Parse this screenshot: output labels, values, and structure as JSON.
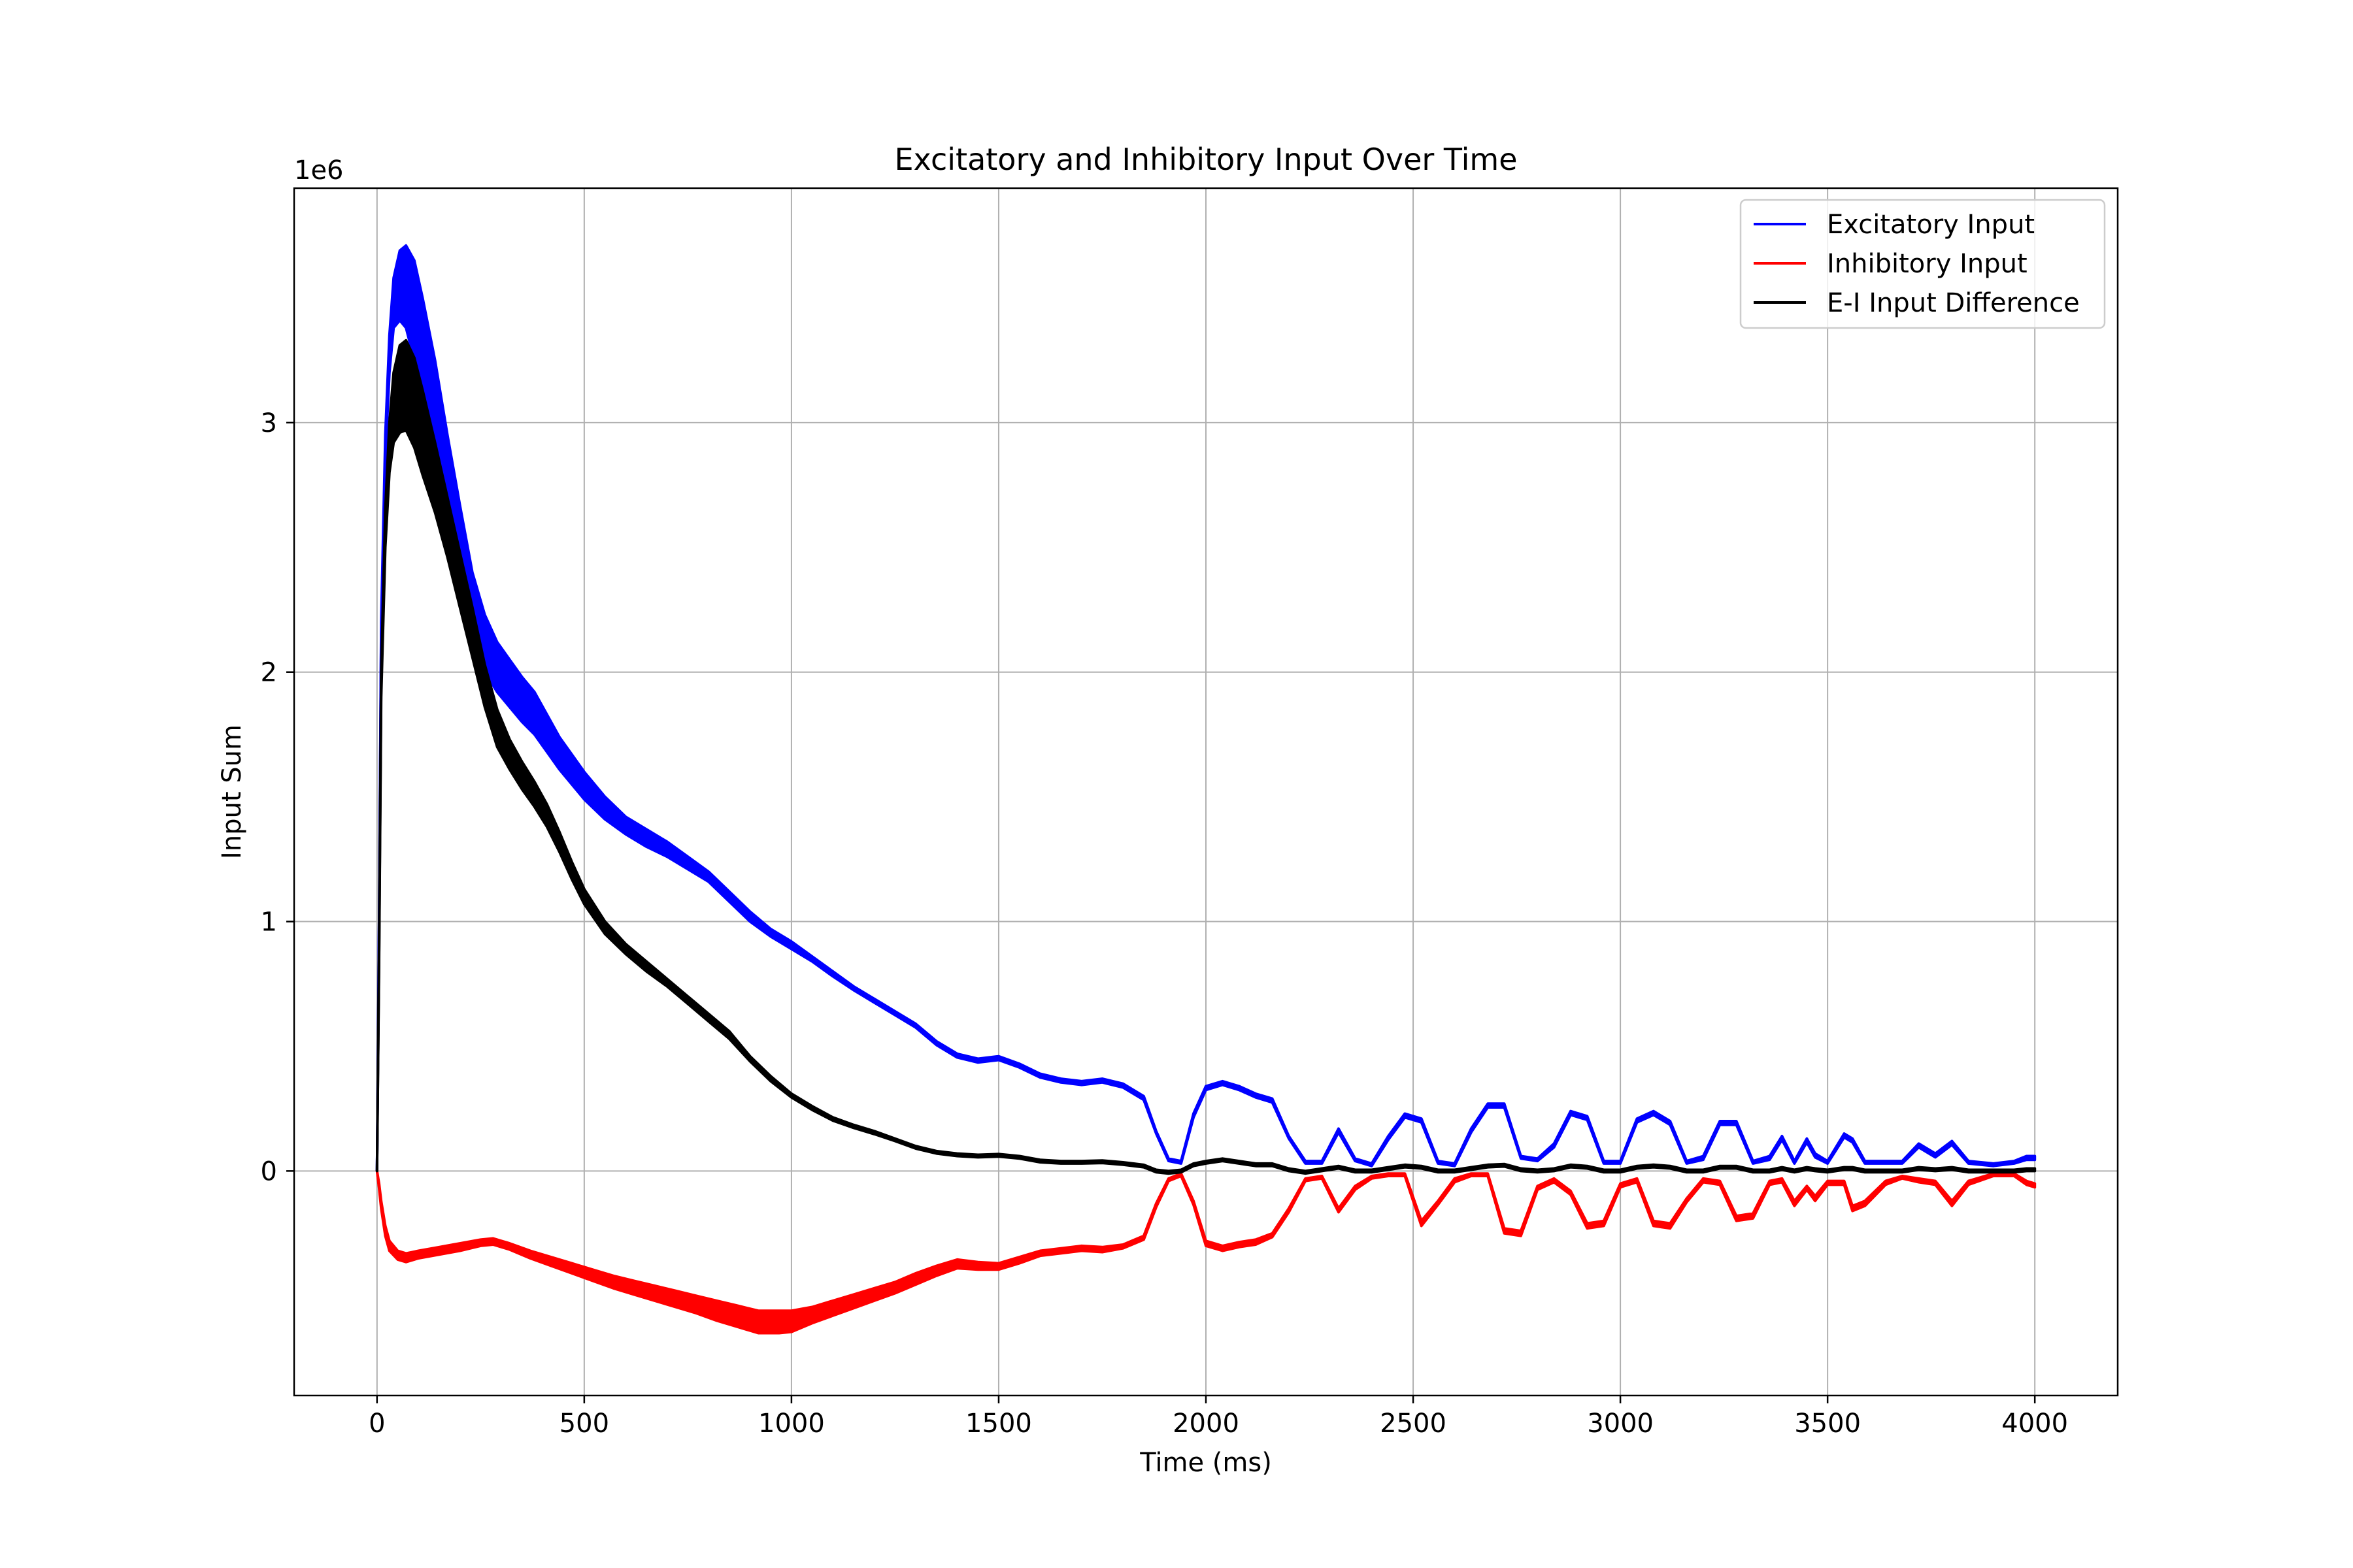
{
  "chart_data": {
    "type": "line",
    "title": "Excitatory and Inhibitory Input Over Time",
    "xlabel": "Time (ms)",
    "ylabel": "Input Sum",
    "y_offset_label": "1e6",
    "xlim": [
      -200,
      4200
    ],
    "ylim": [
      -900000,
      3940000
    ],
    "x_ticks": [
      0,
      500,
      1000,
      1500,
      2000,
      2500,
      3000,
      3500,
      4000
    ],
    "x_tick_labels": [
      "0",
      "500",
      "1000",
      "1500",
      "2000",
      "2500",
      "3000",
      "3500",
      "4000"
    ],
    "y_ticks": [
      0,
      1000000,
      2000000,
      3000000
    ],
    "y_tick_labels": [
      "0",
      "1",
      "2",
      "3"
    ],
    "grid": true,
    "legend_position": "top-right",
    "series": [
      {
        "name": "Excitatory Input",
        "color": "#0000ff",
        "x": [
          0,
          5,
          10,
          20,
          30,
          40,
          55,
          70,
          90,
          110,
          140,
          170,
          200,
          230,
          260,
          290,
          320,
          350,
          380,
          410,
          440,
          470,
          500,
          550,
          600,
          650,
          700,
          750,
          800,
          850,
          900,
          950,
          1000,
          1050,
          1100,
          1150,
          1200,
          1250,
          1300,
          1350,
          1400,
          1450,
          1500,
          1550,
          1600,
          1650,
          1700,
          1750,
          1800,
          1850,
          1880,
          1910,
          1940,
          1970,
          2000,
          2040,
          2080,
          2120,
          2160,
          2200,
          2240,
          2280,
          2320,
          2360,
          2400,
          2440,
          2480,
          2520,
          2560,
          2600,
          2640,
          2680,
          2720,
          2760,
          2800,
          2840,
          2880,
          2920,
          2960,
          3000,
          3040,
          3080,
          3120,
          3160,
          3200,
          3240,
          3280,
          3320,
          3360,
          3390,
          3420,
          3450,
          3470,
          3500,
          3540,
          3560,
          3590,
          3640,
          3680,
          3720,
          3760,
          3800,
          3840,
          3900,
          3950,
          3980,
          4000
        ],
        "values_upper": [
          0,
          1000000,
          2200000,
          2950000,
          3350000,
          3580000,
          3690000,
          3710000,
          3650000,
          3500000,
          3250000,
          2950000,
          2670000,
          2400000,
          2230000,
          2120000,
          2050000,
          1980000,
          1920000,
          1830000,
          1740000,
          1670000,
          1600000,
          1500000,
          1420000,
          1370000,
          1320000,
          1260000,
          1200000,
          1120000,
          1040000,
          970000,
          920000,
          860000,
          800000,
          740000,
          690000,
          640000,
          590000,
          520000,
          470000,
          450000,
          460000,
          430000,
          390000,
          370000,
          360000,
          370000,
          350000,
          300000,
          160000,
          50000,
          40000,
          230000,
          340000,
          360000,
          340000,
          310000,
          290000,
          140000,
          40000,
          40000,
          170000,
          50000,
          30000,
          140000,
          230000,
          210000,
          40000,
          30000,
          170000,
          270000,
          270000,
          60000,
          50000,
          110000,
          240000,
          220000,
          40000,
          40000,
          210000,
          240000,
          200000,
          40000,
          60000,
          200000,
          200000,
          40000,
          60000,
          140000,
          40000,
          130000,
          70000,
          40000,
          150000,
          130000,
          40000,
          40000,
          40000,
          110000,
          70000,
          120000,
          40000,
          30000,
          40000,
          60000,
          60000
        ],
        "values_lower": [
          0,
          1000000,
          2100000,
          2850000,
          3200000,
          3380000,
          3410000,
          3380000,
          3250000,
          3080000,
          2850000,
          2600000,
          2380000,
          2170000,
          2000000,
          1920000,
          1860000,
          1800000,
          1750000,
          1680000,
          1610000,
          1550000,
          1490000,
          1410000,
          1350000,
          1300000,
          1260000,
          1210000,
          1160000,
          1080000,
          1000000,
          940000,
          890000,
          840000,
          780000,
          725000,
          675000,
          625000,
          575000,
          505000,
          455000,
          435000,
          445000,
          415000,
          375000,
          355000,
          345000,
          355000,
          335000,
          285000,
          150000,
          40000,
          30000,
          215000,
          325000,
          345000,
          325000,
          295000,
          275000,
          130000,
          30000,
          30000,
          155000,
          40000,
          20000,
          125000,
          215000,
          195000,
          30000,
          20000,
          155000,
          255000,
          255000,
          50000,
          40000,
          95000,
          225000,
          205000,
          30000,
          30000,
          195000,
          225000,
          185000,
          30000,
          45000,
          185000,
          185000,
          30000,
          45000,
          125000,
          30000,
          115000,
          55000,
          30000,
          135000,
          115000,
          30000,
          30000,
          30000,
          95000,
          55000,
          105000,
          30000,
          20000,
          30000,
          45000,
          45000
        ]
      },
      {
        "name": "Inhibitory Input",
        "color": "#ff0000",
        "x": [
          0,
          5,
          10,
          20,
          30,
          50,
          70,
          100,
          150,
          200,
          250,
          280,
          320,
          370,
          420,
          470,
          520,
          570,
          620,
          670,
          720,
          770,
          820,
          870,
          920,
          970,
          1000,
          1050,
          1100,
          1150,
          1200,
          1250,
          1300,
          1350,
          1400,
          1450,
          1500,
          1550,
          1600,
          1650,
          1700,
          1750,
          1800,
          1850,
          1880,
          1910,
          1940,
          1970,
          2000,
          2040,
          2080,
          2120,
          2160,
          2200,
          2240,
          2280,
          2320,
          2360,
          2400,
          2440,
          2480,
          2520,
          2560,
          2600,
          2640,
          2680,
          2720,
          2760,
          2800,
          2840,
          2880,
          2920,
          2960,
          3000,
          3040,
          3080,
          3120,
          3160,
          3200,
          3240,
          3280,
          3320,
          3360,
          3390,
          3420,
          3450,
          3470,
          3500,
          3540,
          3560,
          3590,
          3640,
          3680,
          3720,
          3760,
          3800,
          3840,
          3900,
          3950,
          3980,
          4000
        ],
        "values_upper": [
          0,
          -50000,
          -120000,
          -220000,
          -280000,
          -320000,
          -330000,
          -320000,
          -305000,
          -290000,
          -275000,
          -270000,
          -290000,
          -320000,
          -345000,
          -370000,
          -395000,
          -420000,
          -440000,
          -460000,
          -480000,
          -500000,
          -520000,
          -540000,
          -560000,
          -560000,
          -560000,
          -545000,
          -520000,
          -495000,
          -470000,
          -445000,
          -410000,
          -380000,
          -355000,
          -365000,
          -370000,
          -345000,
          -320000,
          -310000,
          -300000,
          -305000,
          -295000,
          -260000,
          -130000,
          -30000,
          -10000,
          -120000,
          -280000,
          -300000,
          -285000,
          -275000,
          -250000,
          -150000,
          -30000,
          -20000,
          -150000,
          -60000,
          -20000,
          -10000,
          -10000,
          -200000,
          -120000,
          -30000,
          -10000,
          -10000,
          -230000,
          -240000,
          -60000,
          -30000,
          -80000,
          -210000,
          -200000,
          -50000,
          -30000,
          -200000,
          -210000,
          -110000,
          -30000,
          -40000,
          -180000,
          -170000,
          -40000,
          -30000,
          -120000,
          -60000,
          -100000,
          -40000,
          -40000,
          -140000,
          -120000,
          -40000,
          -20000,
          -30000,
          -40000,
          -120000,
          -40000,
          -10000,
          -10000,
          -40000,
          -50000
        ],
        "values_lower": [
          0,
          -70000,
          -150000,
          -260000,
          -320000,
          -355000,
          -365000,
          -350000,
          -335000,
          -320000,
          -300000,
          -295000,
          -315000,
          -350000,
          -380000,
          -410000,
          -440000,
          -470000,
          -495000,
          -520000,
          -545000,
          -570000,
          -600000,
          -625000,
          -650000,
          -650000,
          -645000,
          -610000,
          -580000,
          -550000,
          -520000,
          -490000,
          -455000,
          -420000,
          -390000,
          -395000,
          -395000,
          -370000,
          -340000,
          -330000,
          -320000,
          -325000,
          -310000,
          -275000,
          -145000,
          -40000,
          -20000,
          -135000,
          -300000,
          -320000,
          -305000,
          -295000,
          -265000,
          -165000,
          -40000,
          -30000,
          -165000,
          -75000,
          -30000,
          -20000,
          -20000,
          -220000,
          -135000,
          -45000,
          -20000,
          -20000,
          -250000,
          -260000,
          -75000,
          -45000,
          -95000,
          -230000,
          -220000,
          -65000,
          -45000,
          -220000,
          -230000,
          -125000,
          -45000,
          -55000,
          -200000,
          -190000,
          -55000,
          -45000,
          -140000,
          -75000,
          -120000,
          -55000,
          -55000,
          -160000,
          -140000,
          -55000,
          -30000,
          -45000,
          -55000,
          -140000,
          -55000,
          -20000,
          -20000,
          -55000,
          -65000
        ]
      },
      {
        "name": "E-I Input Difference",
        "color": "#000000",
        "x": [
          0,
          5,
          10,
          20,
          30,
          40,
          55,
          70,
          90,
          110,
          140,
          170,
          200,
          230,
          260,
          290,
          320,
          350,
          380,
          410,
          440,
          470,
          500,
          550,
          600,
          650,
          700,
          750,
          800,
          850,
          900,
          950,
          1000,
          1050,
          1100,
          1150,
          1200,
          1250,
          1300,
          1350,
          1400,
          1450,
          1500,
          1550,
          1600,
          1650,
          1700,
          1750,
          1800,
          1850,
          1880,
          1910,
          1940,
          1970,
          2000,
          2040,
          2080,
          2120,
          2160,
          2200,
          2240,
          2280,
          2320,
          2360,
          2400,
          2440,
          2480,
          2520,
          2560,
          2600,
          2640,
          2680,
          2720,
          2760,
          2800,
          2840,
          2880,
          2920,
          2960,
          3000,
          3040,
          3080,
          3120,
          3160,
          3200,
          3240,
          3280,
          3320,
          3360,
          3390,
          3420,
          3450,
          3470,
          3500,
          3540,
          3560,
          3590,
          3640,
          3680,
          3720,
          3760,
          3800,
          3840,
          3900,
          3950,
          3980,
          4000
        ],
        "values_upper": [
          0,
          900000,
          2000000,
          2650000,
          3000000,
          3200000,
          3310000,
          3330000,
          3260000,
          3130000,
          2920000,
          2700000,
          2480000,
          2260000,
          2030000,
          1850000,
          1730000,
          1640000,
          1560000,
          1470000,
          1360000,
          1240000,
          1130000,
          1000000,
          910000,
          840000,
          770000,
          700000,
          630000,
          560000,
          460000,
          380000,
          310000,
          260000,
          215000,
          185000,
          160000,
          130000,
          100000,
          80000,
          70000,
          65000,
          68000,
          60000,
          45000,
          40000,
          40000,
          42000,
          35000,
          25000,
          5000,
          0,
          5000,
          30000,
          40000,
          50000,
          40000,
          30000,
          30000,
          10000,
          0,
          10000,
          20000,
          5000,
          5000,
          15000,
          25000,
          20000,
          5000,
          5000,
          15000,
          25000,
          28000,
          10000,
          5000,
          10000,
          25000,
          20000,
          5000,
          5000,
          20000,
          25000,
          20000,
          5000,
          5000,
          20000,
          20000,
          5000,
          5000,
          15000,
          5000,
          15000,
          10000,
          5000,
          15000,
          15000,
          5000,
          5000,
          5000,
          15000,
          10000,
          15000,
          5000,
          5000,
          5000,
          10000,
          10000
        ],
        "values_lower": [
          0,
          850000,
          1900000,
          2500000,
          2800000,
          2920000,
          2960000,
          2970000,
          2900000,
          2790000,
          2640000,
          2460000,
          2260000,
          2060000,
          1860000,
          1700000,
          1610000,
          1530000,
          1460000,
          1380000,
          1280000,
          1170000,
          1070000,
          950000,
          870000,
          800000,
          740000,
          670000,
          600000,
          530000,
          440000,
          360000,
          295000,
          245000,
          202000,
          173000,
          148000,
          120000,
          90000,
          70000,
          60000,
          55000,
          58000,
          50000,
          35000,
          30000,
          30000,
          32000,
          25000,
          15000,
          -5000,
          -10000,
          -5000,
          20000,
          30000,
          40000,
          30000,
          20000,
          20000,
          0,
          -10000,
          0,
          10000,
          -5000,
          -5000,
          5000,
          15000,
          10000,
          -5000,
          -5000,
          5000,
          15000,
          18000,
          0,
          -5000,
          0,
          15000,
          10000,
          -5000,
          -5000,
          10000,
          15000,
          10000,
          -5000,
          -5000,
          10000,
          10000,
          -5000,
          -5000,
          5000,
          -5000,
          5000,
          0,
          -5000,
          5000,
          5000,
          -5000,
          -5000,
          -5000,
          5000,
          0,
          5000,
          -5000,
          -5000,
          -5000,
          0,
          0
        ]
      }
    ]
  }
}
